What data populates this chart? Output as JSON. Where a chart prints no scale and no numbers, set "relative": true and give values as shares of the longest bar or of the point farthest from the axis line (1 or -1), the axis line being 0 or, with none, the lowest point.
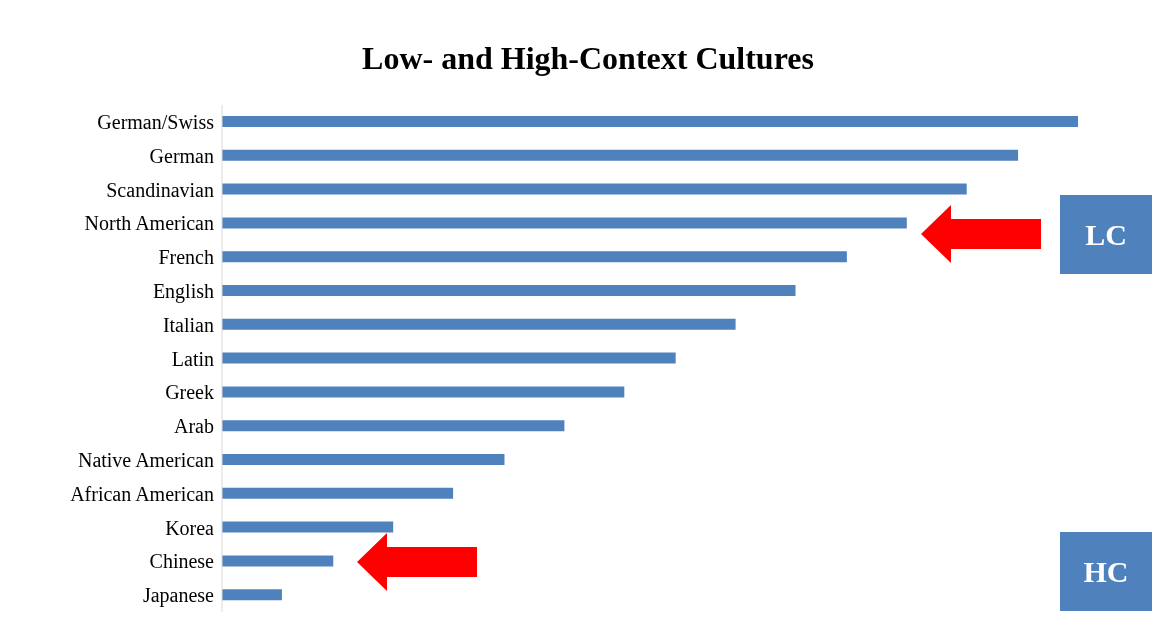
{
  "chart_data": {
    "type": "bar",
    "orientation": "horizontal",
    "relative": true,
    "title": "Low- and High-Context Cultures",
    "categories": [
      "German/Swiss",
      "German",
      "Scandinavian",
      "North American",
      "French",
      "English",
      "Italian",
      "Latin",
      "Greek",
      "Arab",
      "Native American",
      "African American",
      "Korea",
      "Chinese",
      "Japanese"
    ],
    "values": [
      1,
      0.93,
      0.87,
      0.8,
      0.73,
      0.67,
      0.6,
      0.53,
      0.47,
      0.4,
      0.33,
      0.27,
      0.2,
      0.13,
      0.07
    ],
    "color": "#4f81bd",
    "annotations": [
      "LC",
      "HC"
    ]
  }
}
